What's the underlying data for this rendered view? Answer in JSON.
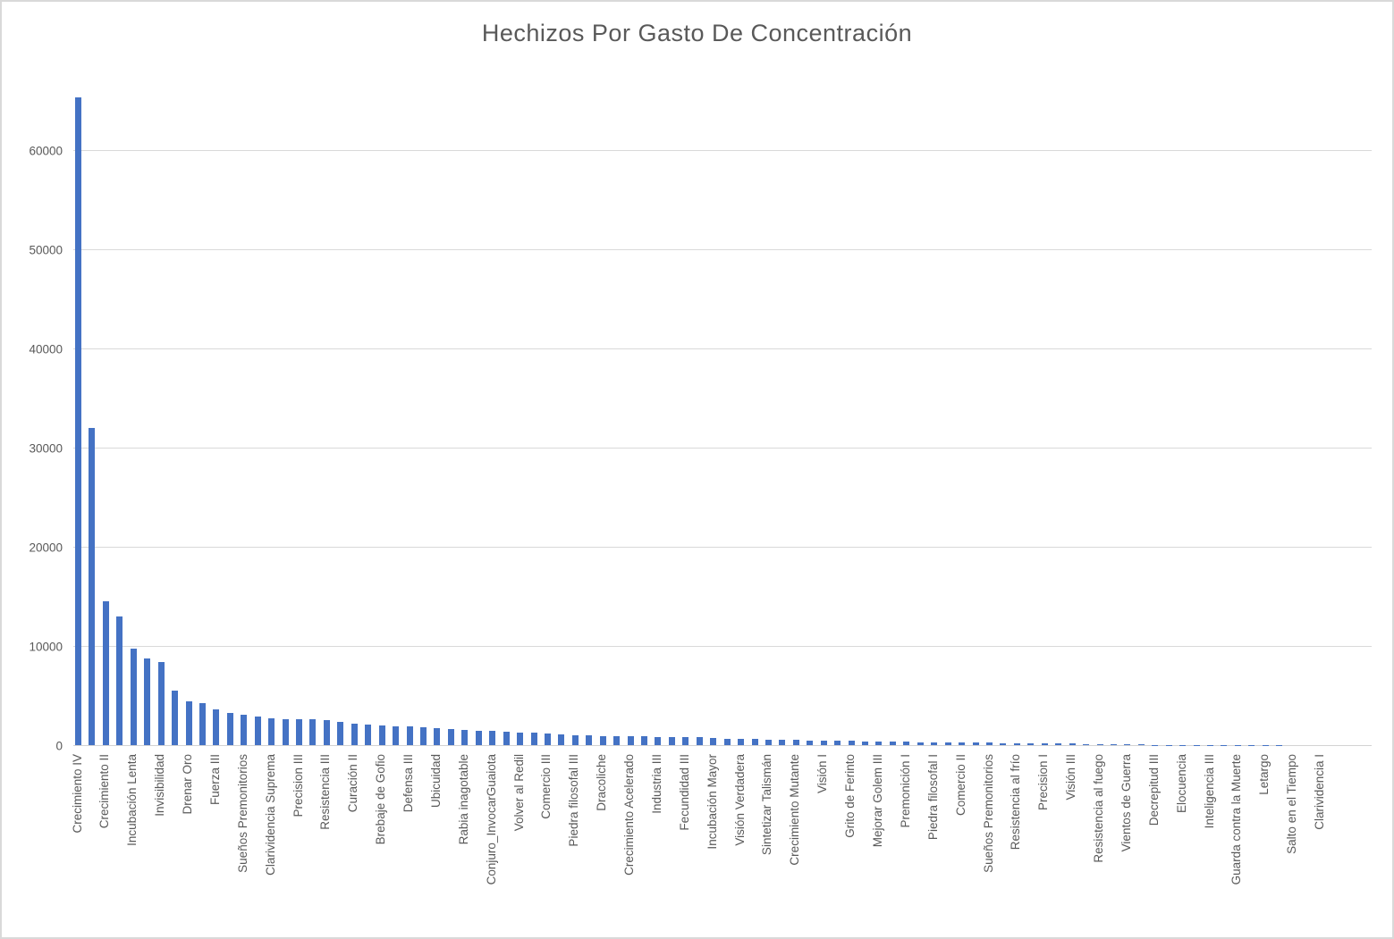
{
  "chart_data": {
    "type": "bar",
    "title": "Hechizos Por Gasto De Concentración",
    "xlabel": "",
    "ylabel": "",
    "ylim": [
      0,
      68300
    ],
    "yticks": [
      0,
      10000,
      20000,
      30000,
      40000,
      50000,
      60000
    ],
    "grid": "horizontal",
    "legend": "none",
    "x_label_rotation_degrees": 90,
    "bar_color": "#4472C4",
    "gridline_color": "#D9D9D9",
    "text_color": "#595959",
    "categories": [
      "Crecimiento IV",
      "",
      "Crecimiento II",
      "",
      "Incubación Lenta",
      "",
      "Invisibilidad",
      "",
      "Drenar Oro",
      "",
      "Fuerza III",
      "",
      "Sueños Premonitorios",
      "",
      "Clarividencia Suprema",
      "",
      "Precision III",
      "",
      "Resistencia III",
      "",
      "Curación II",
      "",
      "Brebaje de Gofio",
      "",
      "Defensa III",
      "",
      "Ubicuidad",
      "",
      "Rabia inagotable",
      "",
      "Conjuro_InvocarGuaiota",
      "",
      "Volver al Redil",
      "",
      "Comercio III",
      "",
      "Piedra filosofal III",
      "",
      "Dracoliche",
      "",
      "Crecimiento Acelerado",
      "",
      "Industria III",
      "",
      "Fecundidad III",
      "",
      "Incubación Mayor",
      "",
      "Visión Verdadera",
      "",
      "Sintetizar Talismán",
      "",
      "Crecimiento Mutante",
      "",
      "Visión I",
      "",
      "Grito de Ferinto",
      "",
      "Mejorar Golem III",
      "",
      "Premonición I",
      "",
      "Piedra filosofal I",
      "",
      "Comercio II",
      "",
      "Sueños Premonitorios",
      "",
      "Resistencia al frío",
      "",
      "Precision I",
      "",
      "Visión III",
      "",
      "Resistencia al fuego",
      "",
      "Vientos de Guerra",
      "",
      "Decrepitud III",
      "",
      "Elocuencia",
      "",
      "Inteligencia III",
      "",
      "Guarda contra la Muerte",
      "",
      "Letargo",
      "",
      "Salto en el Tiempo",
      "",
      "Clarividencia I",
      ""
    ],
    "values": [
      65300,
      32000,
      14500,
      13000,
      9700,
      8700,
      8400,
      5500,
      4400,
      4200,
      3600,
      3250,
      3100,
      2870,
      2720,
      2650,
      2620,
      2570,
      2520,
      2300,
      2200,
      2060,
      1980,
      1900,
      1850,
      1780,
      1700,
      1640,
      1560,
      1480,
      1420,
      1350,
      1280,
      1220,
      1150,
      1080,
      1020,
      960,
      920,
      900,
      880,
      860,
      840,
      830,
      820,
      780,
      720,
      660,
      620,
      600,
      570,
      540,
      510,
      480,
      450,
      430,
      410,
      390,
      360,
      340,
      320,
      310,
      300,
      290,
      270,
      250,
      240,
      220,
      200,
      185,
      170,
      155,
      140,
      130,
      120,
      100,
      60,
      50,
      40,
      35,
      30,
      25,
      20,
      18,
      15,
      12,
      10,
      8,
      6,
      5,
      4,
      3
    ]
  }
}
